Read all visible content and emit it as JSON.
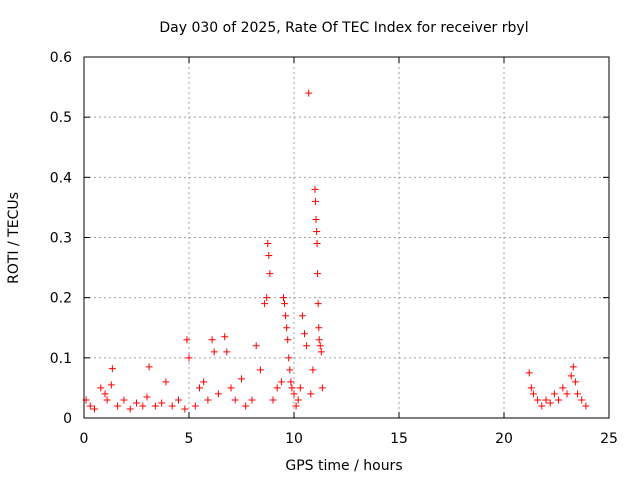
{
  "chart_data": {
    "type": "scatter",
    "title": "Day 030 of 2025, Rate Of TEC Index for receiver rbyl",
    "xlabel": "GPS time / hours",
    "ylabel": "ROTI / TECUs",
    "xlim": [
      0,
      25
    ],
    "ylim": [
      0,
      0.6
    ],
    "xticks": [
      "0",
      "5",
      "10",
      "15",
      "20",
      "25"
    ],
    "yticks": [
      "0",
      "0.1",
      "0.2",
      "0.3",
      "0.4",
      "0.5",
      "0.6"
    ],
    "grid": true,
    "marker": "+",
    "color": "#ff0000",
    "series": [
      {
        "x": [
          0.1,
          0.3,
          0.5,
          0.8,
          1.0,
          1.1,
          1.3,
          1.35,
          1.6,
          1.9,
          2.2,
          2.5,
          2.8,
          3.0,
          3.1,
          3.4,
          3.7,
          3.9,
          4.2,
          4.5,
          4.8,
          4.9,
          5.0,
          5.3,
          5.5,
          5.7,
          5.9,
          6.1,
          6.2,
          6.4,
          6.7,
          6.8,
          7.0,
          7.2,
          7.5,
          7.7,
          8.0,
          8.2,
          8.4,
          8.6,
          8.7,
          8.75,
          8.8,
          8.85,
          9.0,
          9.2,
          9.4,
          9.5,
          9.55,
          9.6,
          9.65,
          9.7,
          9.75,
          9.8,
          9.85,
          9.9,
          10.0,
          10.1,
          10.2,
          10.3,
          10.4,
          10.5,
          10.6,
          10.7,
          10.8,
          10.9,
          11.0,
          11.02,
          11.05,
          11.08,
          11.1,
          11.12,
          11.15,
          11.18,
          11.2,
          11.25,
          11.3,
          11.35,
          21.2,
          21.3,
          21.4,
          21.6,
          21.8,
          22.0,
          22.2,
          22.4,
          22.6,
          22.8,
          23.0,
          23.2,
          23.3,
          23.4,
          23.5,
          23.7,
          23.9
        ],
        "y": [
          0.03,
          0.02,
          0.015,
          0.05,
          0.04,
          0.03,
          0.055,
          0.082,
          0.02,
          0.03,
          0.015,
          0.025,
          0.02,
          0.035,
          0.085,
          0.02,
          0.025,
          0.06,
          0.02,
          0.03,
          0.015,
          0.13,
          0.1,
          0.02,
          0.05,
          0.06,
          0.03,
          0.13,
          0.11,
          0.04,
          0.135,
          0.11,
          0.05,
          0.03,
          0.065,
          0.02,
          0.03,
          0.12,
          0.08,
          0.19,
          0.2,
          0.29,
          0.27,
          0.24,
          0.03,
          0.05,
          0.06,
          0.2,
          0.19,
          0.17,
          0.15,
          0.13,
          0.1,
          0.08,
          0.06,
          0.05,
          0.04,
          0.02,
          0.03,
          0.05,
          0.17,
          0.14,
          0.12,
          0.54,
          0.04,
          0.08,
          0.38,
          0.36,
          0.33,
          0.31,
          0.29,
          0.24,
          0.19,
          0.15,
          0.13,
          0.12,
          0.11,
          0.05,
          0.075,
          0.05,
          0.04,
          0.03,
          0.02,
          0.03,
          0.025,
          0.04,
          0.03,
          0.05,
          0.04,
          0.07,
          0.085,
          0.06,
          0.04,
          0.03,
          0.02
        ]
      }
    ]
  }
}
